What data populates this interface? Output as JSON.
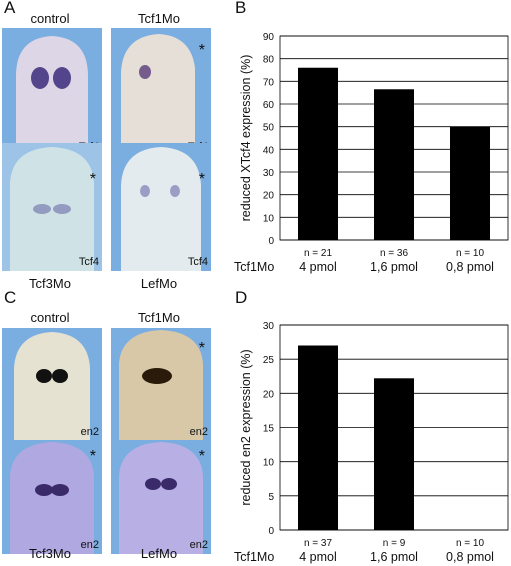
{
  "panels": {
    "A": {
      "letter": "A",
      "top_labels": [
        "control",
        "Tcf1Mo"
      ],
      "bottom_labels": [
        "Tcf3Mo",
        "LefMo"
      ],
      "marker": "Tcf4",
      "asterisk": "*"
    },
    "B": {
      "letter": "B"
    },
    "C": {
      "letter": "C",
      "top_labels": [
        "control",
        "Tcf1Mo"
      ],
      "bottom_labels": [
        "Tcf3Mo",
        "LefMo"
      ],
      "marker": "en2",
      "asterisk": "*"
    },
    "D": {
      "letter": "D"
    }
  },
  "chart_data": [
    {
      "type": "bar",
      "ylabel": "reduced XTcf4 expression (%)",
      "ylim": [
        0,
        90
      ],
      "yticks": [
        0,
        10,
        20,
        30,
        40,
        50,
        60,
        70,
        80,
        90
      ],
      "grid": true,
      "row_label": "Tcf1Mo",
      "categories": [
        "4 pmol",
        "1,6 pmol",
        "0,8 pmol"
      ],
      "n_labels": [
        "n = 21",
        "n = 36",
        "n = 10"
      ],
      "values": [
        76,
        66.5,
        50
      ]
    },
    {
      "type": "bar",
      "ylabel": "reduced en2 expression (%)",
      "ylim": [
        0,
        30
      ],
      "yticks": [
        0,
        5,
        10,
        15,
        20,
        25,
        30
      ],
      "grid": true,
      "row_label": "Tcf1Mo",
      "categories": [
        "4 pmol",
        "1,6 pmol",
        "0,8 pmol"
      ],
      "n_labels": [
        "n = 37",
        "n = 9",
        "n = 10"
      ],
      "values": [
        27,
        22.2,
        0
      ]
    }
  ]
}
